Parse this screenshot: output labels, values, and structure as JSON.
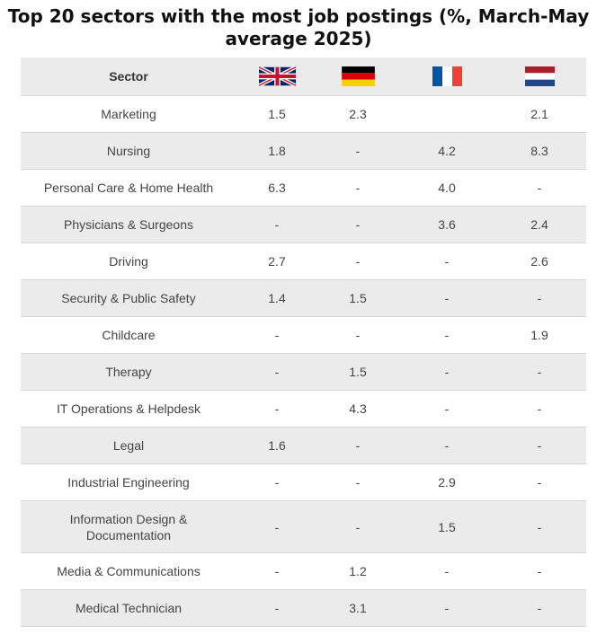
{
  "chart_data": {
    "type": "table",
    "title": "Top 20 sectors with the most job postings (%, March-May average 2025)",
    "header": {
      "sector_label": "Sector",
      "countries": [
        {
          "flag_icon": "uk-flag-icon"
        },
        {
          "flag_icon": "germany-flag-icon"
        },
        {
          "flag_icon": "france-flag-icon"
        },
        {
          "flag_icon": "netherlands-flag-icon"
        }
      ]
    },
    "rows": [
      {
        "sector": "Marketing",
        "values": [
          "1.5",
          "2.3",
          "",
          "2.1"
        ]
      },
      {
        "sector": "Nursing",
        "values": [
          "1.8",
          "-",
          "4.2",
          "8.3"
        ]
      },
      {
        "sector": "Personal Care & Home Health",
        "values": [
          "6.3",
          "-",
          "4.0",
          "-"
        ]
      },
      {
        "sector": "Physicians & Surgeons",
        "values": [
          "-",
          "-",
          "3.6",
          "2.4"
        ]
      },
      {
        "sector": "Driving",
        "values": [
          "2.7",
          "-",
          "-",
          "2.6"
        ]
      },
      {
        "sector": "Security & Public Safety",
        "values": [
          "1.4",
          "1.5",
          "-",
          "-"
        ]
      },
      {
        "sector": "Childcare",
        "values": [
          "-",
          "-",
          "-",
          "1.9"
        ]
      },
      {
        "sector": "Therapy",
        "values": [
          "-",
          "1.5",
          "-",
          "-"
        ]
      },
      {
        "sector": "IT Operations & Helpdesk",
        "values": [
          "-",
          "4.3",
          "-",
          "-"
        ]
      },
      {
        "sector": "Legal",
        "values": [
          "1.6",
          "-",
          "-",
          "-"
        ]
      },
      {
        "sector": "Industrial Engineering",
        "values": [
          "-",
          "-",
          "2.9",
          "-"
        ]
      },
      {
        "sector": "Information Design & Documentation",
        "values": [
          "-",
          "-",
          "1.5",
          "-"
        ]
      },
      {
        "sector": "Media & Communications",
        "values": [
          "-",
          "1.2",
          "-",
          "-"
        ]
      },
      {
        "sector": "Medical Technician",
        "values": [
          "-",
          "3.1",
          "-",
          "-"
        ]
      }
    ],
    "colors": {
      "header_background": "#ebebeb",
      "stripe_background": "#ebebeb",
      "row_divider": "#d6d6d6"
    }
  }
}
